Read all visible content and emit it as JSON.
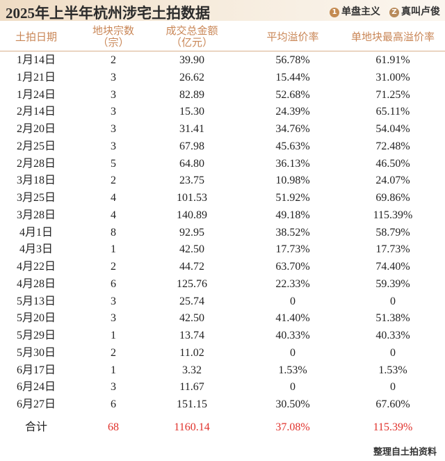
{
  "header": {
    "title": "2025年上半年杭州涉宅土拍数据",
    "logos": [
      "单盘主义",
      "真叫卢俊"
    ]
  },
  "table": {
    "columns": [
      [
        "土拍日期"
      ],
      [
        "地块宗数",
        "（宗）"
      ],
      [
        "成交总金额",
        "（亿元）"
      ],
      [
        "平均溢价率"
      ],
      [
        "单地块最高溢价率"
      ]
    ],
    "rows": [
      [
        "1月14日",
        "2",
        "39.90",
        "56.78%",
        "61.91%"
      ],
      [
        "1月21日",
        "3",
        "26.62",
        "15.44%",
        "31.00%"
      ],
      [
        "1月24日",
        "3",
        "82.89",
        "52.68%",
        "71.25%"
      ],
      [
        "2月14日",
        "3",
        "15.30",
        "24.39%",
        "65.11%"
      ],
      [
        "2月20日",
        "3",
        "31.41",
        "34.76%",
        "54.04%"
      ],
      [
        "2月25日",
        "3",
        "67.98",
        "45.63%",
        "72.48%"
      ],
      [
        "2月28日",
        "5",
        "64.80",
        "36.13%",
        "46.50%"
      ],
      [
        "3月18日",
        "2",
        "23.75",
        "10.98%",
        "24.07%"
      ],
      [
        "3月25日",
        "4",
        "101.53",
        "51.92%",
        "69.86%"
      ],
      [
        "3月28日",
        "4",
        "140.89",
        "49.18%",
        "115.39%"
      ],
      [
        "4月1日",
        "8",
        "92.95",
        "38.52%",
        "58.79%"
      ],
      [
        "4月3日",
        "1",
        "42.50",
        "17.73%",
        "17.73%"
      ],
      [
        "4月22日",
        "2",
        "44.72",
        "63.70%",
        "74.40%"
      ],
      [
        "4月28日",
        "6",
        "125.76",
        "22.33%",
        "59.39%"
      ],
      [
        "5月13日",
        "3",
        "25.74",
        "0",
        "0"
      ],
      [
        "5月20日",
        "3",
        "42.50",
        "41.40%",
        "51.38%"
      ],
      [
        "5月29日",
        "1",
        "13.74",
        "40.33%",
        "40.33%"
      ],
      [
        "5月30日",
        "2",
        "11.02",
        "0",
        "0"
      ],
      [
        "6月17日",
        "1",
        "3.32",
        "1.53%",
        "1.53%"
      ],
      [
        "6月24日",
        "3",
        "11.67",
        "0",
        "0"
      ],
      [
        "6月27日",
        "6",
        "151.15",
        "30.50%",
        "67.60%"
      ]
    ],
    "total": [
      "合计",
      "68",
      "1160.14",
      "37.08%",
      "115.39%"
    ]
  },
  "footer": "整理自土拍资料"
}
